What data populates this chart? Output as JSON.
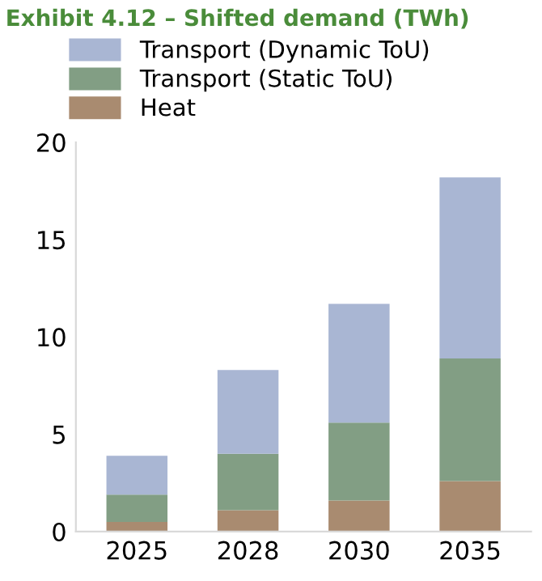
{
  "chart_data": {
    "type": "bar",
    "title": "Exhibit 4.12 – Shifted demand (TWh)",
    "categories": [
      "2025",
      "2028",
      "2030",
      "2035"
    ],
    "stacked": true,
    "series": [
      {
        "name": "Heat",
        "color": "#a98b70",
        "values": [
          0.5,
          1.1,
          1.6,
          2.6
        ]
      },
      {
        "name": "Transport (Static ToU)",
        "color": "#829e84",
        "values": [
          1.4,
          2.9,
          4.0,
          6.3
        ]
      },
      {
        "name": "Transport (Dynamic ToU)",
        "color": "#a9b6d3",
        "values": [
          2.0,
          4.3,
          6.1,
          9.3
        ]
      }
    ],
    "ylim": [
      0,
      20
    ],
    "yticks": [
      0,
      5,
      10,
      15,
      20
    ],
    "grid": false,
    "legend": "top"
  }
}
